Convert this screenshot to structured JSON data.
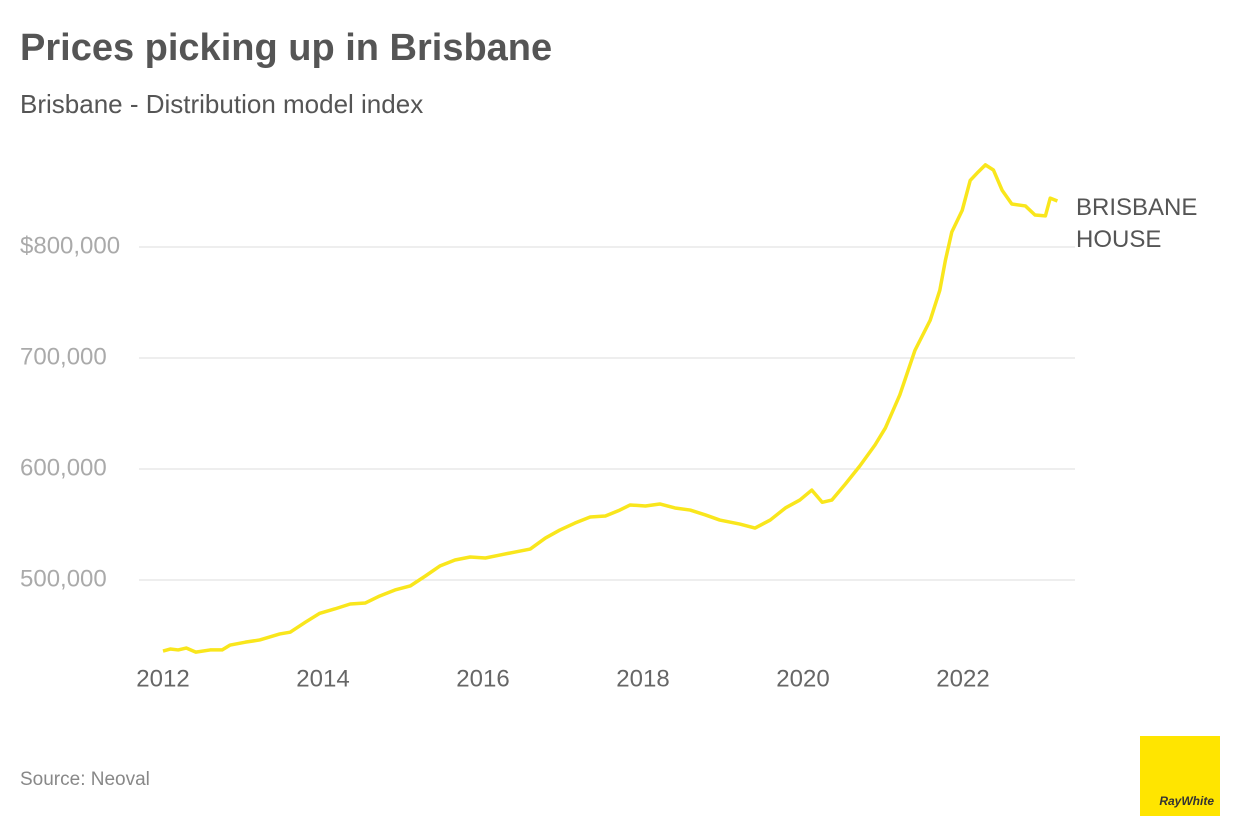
{
  "chart_data": {
    "type": "line",
    "title": "Prices picking up in Brisbane",
    "subtitle": "Brisbane - Distribution model index",
    "source": "Source: Neoval",
    "logo": "RayWhite",
    "xlim": [
      2011.7,
      2023.4
    ],
    "xticks": [
      2012,
      2014,
      2016,
      2018,
      2020,
      2022
    ],
    "ylim": [
      430000,
      880000
    ],
    "yticks": [
      {
        "value": 500000,
        "label": "500,000"
      },
      {
        "value": 600000,
        "label": "600,000"
      },
      {
        "value": 700000,
        "label": "700,000"
      },
      {
        "value": 800000,
        "label": "$800,000"
      }
    ],
    "grid": true,
    "x": [
      2012.0,
      2012.09,
      2012.19,
      2012.29,
      2012.41,
      2012.59,
      2012.74,
      2012.84,
      2013.03,
      2013.21,
      2013.46,
      2013.59,
      2013.78,
      2013.96,
      2014.15,
      2014.34,
      2014.53,
      2014.71,
      2014.9,
      2015.09,
      2015.28,
      2015.46,
      2015.65,
      2015.84,
      2016.03,
      2016.21,
      2016.4,
      2016.59,
      2016.78,
      2016.96,
      2017.15,
      2017.34,
      2017.53,
      2017.71,
      2017.84,
      2018.03,
      2018.21,
      2018.4,
      2018.59,
      2018.78,
      2018.96,
      2019.21,
      2019.4,
      2019.59,
      2019.78,
      2019.96,
      2020.11,
      2020.24,
      2020.36,
      2020.53,
      2020.71,
      2020.9,
      2021.03,
      2021.21,
      2021.4,
      2021.59,
      2021.71,
      2021.78,
      2021.86,
      2021.99,
      2022.09,
      2022.19,
      2022.28,
      2022.38,
      2022.49,
      2022.61,
      2022.78,
      2022.9,
      2023.03,
      2023.09,
      2023.18
    ],
    "series": [
      {
        "name": "BRISBANE HOUSE",
        "color": "#f9e61c",
        "values": [
          436000,
          437800,
          437000,
          438700,
          435000,
          437000,
          437000,
          441400,
          444000,
          446000,
          451400,
          453000,
          462000,
          470000,
          474000,
          478400,
          479300,
          485600,
          491000,
          494600,
          503600,
          512600,
          518000,
          520700,
          519800,
          522500,
          525200,
          527900,
          537800,
          545000,
          551300,
          556800,
          557700,
          563000,
          567600,
          566700,
          568500,
          564900,
          563000,
          558600,
          554000,
          550400,
          546800,
          554000,
          564900,
          572000,
          581000,
          570000,
          572000,
          586500,
          602700,
          621600,
          637000,
          666700,
          707000,
          734000,
          761000,
          788000,
          813500,
          833000,
          860000,
          867600,
          874000,
          869400,
          851000,
          838700,
          837000,
          828800,
          828000,
          844000,
          841400
        ]
      }
    ]
  }
}
